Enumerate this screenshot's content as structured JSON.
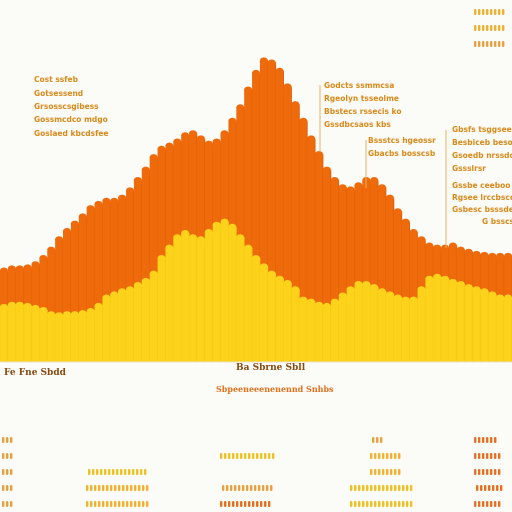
{
  "chart_data": {
    "type": "area",
    "title": "",
    "xlabel": "",
    "ylabel": "",
    "x": [
      0,
      1,
      2,
      3,
      4,
      5,
      6,
      7,
      8,
      9,
      10,
      11,
      12,
      13,
      14,
      15,
      16,
      17,
      18,
      19,
      20,
      21,
      22,
      23,
      24,
      25,
      26,
      27,
      28,
      29,
      30,
      31,
      32,
      33,
      34,
      35,
      36,
      37,
      38,
      39,
      40,
      41,
      42,
      43,
      44,
      45,
      46,
      47,
      48,
      49,
      50,
      51,
      52,
      53,
      54,
      55,
      56,
      57,
      58,
      59,
      60,
      61,
      62,
      63,
      64
    ],
    "ylim": [
      0,
      300
    ],
    "grid": false,
    "series": [
      {
        "name": "",
        "color": "#ee6a0a",
        "values": [
          88,
          90,
          90,
          91,
          94,
          100,
          108,
          118,
          126,
          133,
          140,
          148,
          152,
          155,
          155,
          158,
          165,
          175,
          185,
          197,
          205,
          208,
          212,
          218,
          220,
          215,
          210,
          212,
          220,
          232,
          245,
          262,
          278,
          290,
          288,
          280,
          265,
          248,
          232,
          215,
          200,
          185,
          175,
          168,
          166,
          170,
          175,
          175,
          168,
          158,
          145,
          135,
          125,
          118,
          112,
          110,
          110,
          112,
          108,
          106,
          104,
          103,
          102,
          102,
          102
        ]
      },
      {
        "name": "",
        "color": "#fcd31a",
        "values": [
          53,
          55,
          55,
          54,
          52,
          50,
          46,
          45,
          46,
          46,
          47,
          49,
          54,
          62,
          65,
          68,
          70,
          74,
          78,
          85,
          100,
          110,
          120,
          124,
          120,
          118,
          125,
          132,
          135,
          130,
          120,
          110,
          100,
          92,
          85,
          80,
          76,
          70,
          60,
          58,
          55,
          54,
          58,
          64,
          70,
          75,
          75,
          72,
          68,
          65,
          62,
          60,
          60,
          70,
          80,
          82,
          80,
          77,
          75,
          72,
          70,
          68,
          65,
          62,
          62
        ]
      }
    ],
    "annotations": [
      [
        "Cost ssfeb",
        "Gotsessend",
        "Grsosscsgibess",
        "Gossmcdco mdgo",
        "Goslaed kbcdsfee"
      ],
      [
        "Godcts ssmmcsa",
        "Rgeolyn tsseolme",
        "Bbstecs rssecis ko",
        "Gssdbcsaos kbs"
      ],
      [
        "Bssstcs hgeossr",
        "Gbacbs bosscsb"
      ],
      [
        "Gbsfs tsggsees",
        "Besbiceb besoedd",
        "Gsoedb nrssdoseb",
        "Gssslrsr"
      ],
      [
        "Gssbe ceeboo",
        "Rgsee lrccbscob",
        "Gsbesc bsssdeed",
        "G bsscsb"
      ]
    ],
    "axis_labels": [
      "Fe Fne Sbdd",
      "Ba Sbrne Sbll"
    ],
    "legend": "Sbpeeneeenenennd Snhbs"
  }
}
